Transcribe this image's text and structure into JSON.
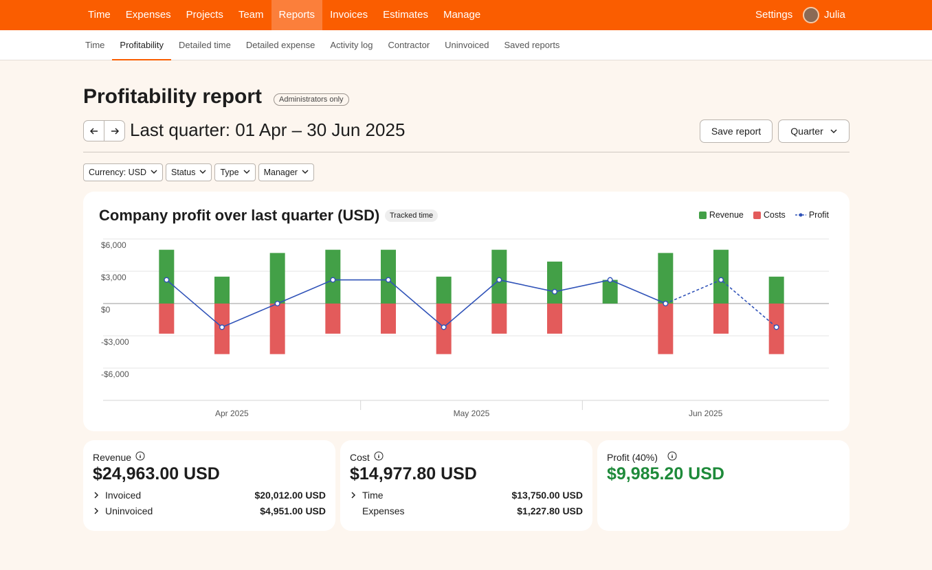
{
  "nav": {
    "items": [
      "Time",
      "Expenses",
      "Projects",
      "Team",
      "Reports",
      "Invoices",
      "Estimates",
      "Manage"
    ],
    "active": 4,
    "settings": "Settings",
    "user": "Julia"
  },
  "subnav": {
    "items": [
      "Time",
      "Profitability",
      "Detailed time",
      "Detailed expense",
      "Activity log",
      "Contractor",
      "Uninvoiced",
      "Saved reports"
    ],
    "active": 1
  },
  "header": {
    "title": "Profitability report",
    "badge": "Administrators only",
    "range": "Last quarter: 01 Apr – 30 Jun 2025",
    "save": "Save report",
    "period": "Quarter"
  },
  "filters": [
    "Currency: USD",
    "Status",
    "Type",
    "Manager"
  ],
  "chart_data": {
    "type": "bar",
    "title": "Company profit over last quarter (USD)",
    "tag": "Tracked time",
    "categories": [
      null,
      null,
      null,
      null,
      null,
      null,
      null,
      null,
      null,
      null,
      null,
      null
    ],
    "months": [
      "Apr 2025",
      "May 2025",
      "Jun 2025"
    ],
    "series": [
      {
        "name": "Revenue",
        "type": "bar",
        "color": "#43a047",
        "values": [
          5000,
          2500,
          4700,
          5000,
          5000,
          2500,
          5000,
          3900,
          2200,
          4700,
          5000,
          2500
        ]
      },
      {
        "name": "Costs",
        "type": "bar",
        "color": "#e35b5b",
        "values": [
          -2800,
          -4700,
          -4700,
          -2800,
          -2800,
          -4700,
          -2800,
          -2800,
          0,
          -4700,
          -2800,
          -4700
        ]
      },
      {
        "name": "Profit",
        "type": "line",
        "color": "#2f52b8",
        "dashed_from": 9,
        "values": [
          2200,
          -2200,
          0,
          2200,
          2200,
          -2200,
          2200,
          1100,
          2200,
          0,
          2200,
          -2200
        ]
      }
    ],
    "ylim": [
      -9000,
      6000
    ],
    "yticks": [
      {
        "value": 6000,
        "label": "$6,000"
      },
      {
        "value": 3000,
        "label": "$3,000"
      },
      {
        "value": 0,
        "label": "$0"
      },
      {
        "value": -3000,
        "label": "-$3,000"
      },
      {
        "value": -6000,
        "label": "-$6,000"
      }
    ],
    "grid": true,
    "legend": "top-right"
  },
  "summary": [
    {
      "label": "Revenue",
      "total": "$24,963.00 USD",
      "rows": [
        {
          "label": "Invoiced",
          "value": "$20,012.00 USD",
          "expandable": true
        },
        {
          "label": "Uninvoiced",
          "value": "$4,951.00 USD",
          "expandable": true
        }
      ]
    },
    {
      "label": "Cost",
      "total": "$14,977.80 USD",
      "rows": [
        {
          "label": "Time",
          "value": "$13,750.00 USD",
          "expandable": true
        },
        {
          "label": "Expenses",
          "value": "$1,227.80 USD",
          "expandable": false
        }
      ]
    },
    {
      "label": "Profit (40%)",
      "total": "$9,985.20 USD",
      "rows": []
    }
  ]
}
